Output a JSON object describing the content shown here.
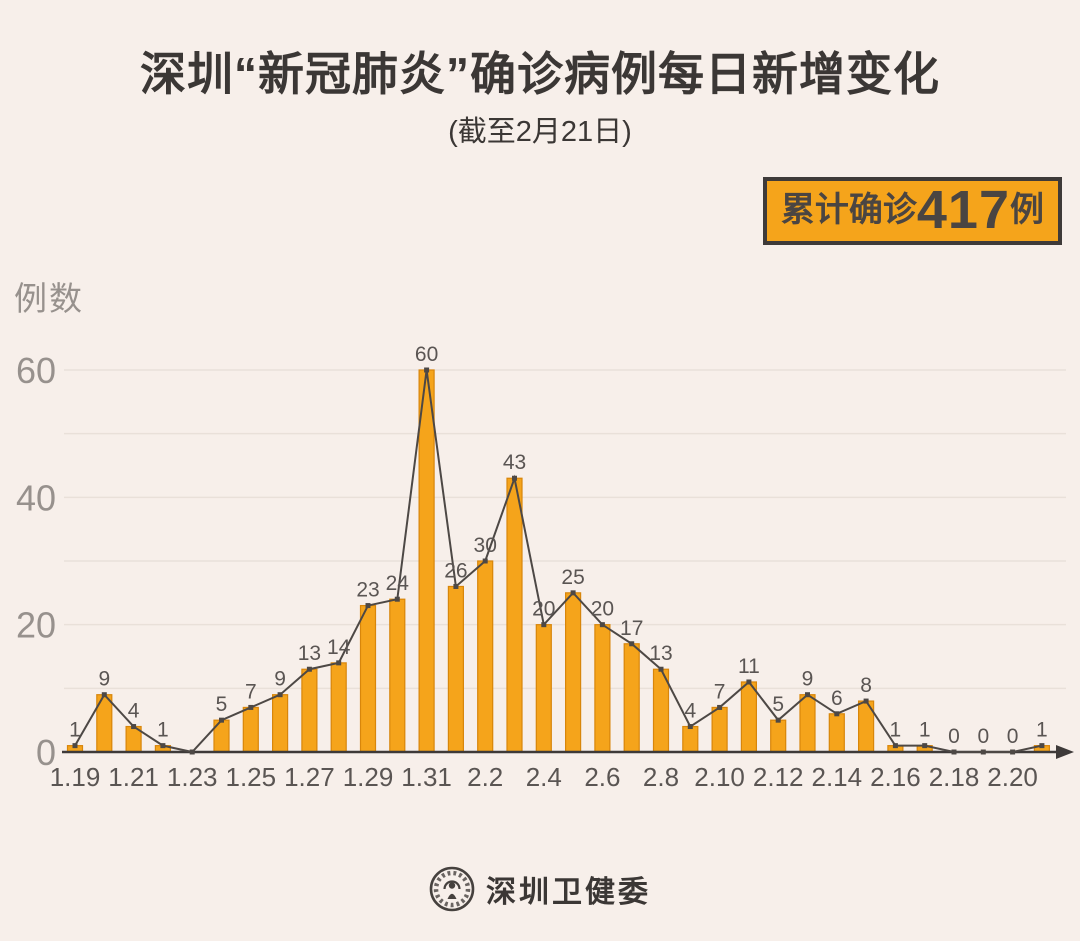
{
  "colors": {
    "background": "#F7EFEA",
    "bar_fill": "#F5A41B",
    "bar_stroke": "#D8860B",
    "line": "#4D4845",
    "marker": "#4D4845",
    "grid": "#E9E0D9",
    "axis": "#3E3A39",
    "text_dark": "#3B3735",
    "text_gray": "#5A5553",
    "tick_gray": "#97918D",
    "badge_bg": "#F5A41B",
    "badge_border": "#3E3A39",
    "badge_text": "#4A4542"
  },
  "header": {
    "title": "深圳“新冠肺炎”确诊病例每日新增变化",
    "subtitle": "(截至2月21日)"
  },
  "badge": {
    "prefix": "累计确诊",
    "value": "417",
    "suffix": "例",
    "full_text": "累计确诊417例"
  },
  "footer": {
    "org": "深圳卫健委",
    "logo": "shenzhen-health-commission-seal"
  },
  "chart_data": {
    "type": "bar",
    "line_overlay": true,
    "title": "深圳“新冠肺炎”确诊病例每日新增变化",
    "subtitle": "(截至2月21日)",
    "xlabel": "",
    "ylabel": "例数",
    "ylim": [
      0,
      65
    ],
    "y_ticks": [
      0,
      20,
      40,
      60
    ],
    "grid_values": [
      10,
      20,
      30,
      40,
      50,
      60
    ],
    "grid_on": true,
    "legend": "none",
    "categories": [
      "1.19",
      "1.20",
      "1.21",
      "1.22",
      "1.23",
      "1.24",
      "1.25",
      "1.26",
      "1.27",
      "1.28",
      "1.29",
      "1.30",
      "1.31",
      "2.1",
      "2.2",
      "2.3",
      "2.4",
      "2.5",
      "2.6",
      "2.7",
      "2.8",
      "2.9",
      "2.10",
      "2.11",
      "2.12",
      "2.13",
      "2.14",
      "2.15",
      "2.16",
      "2.17",
      "2.18",
      "2.19",
      "2.20",
      "2.21"
    ],
    "values": [
      1,
      9,
      4,
      1,
      0,
      5,
      7,
      9,
      13,
      14,
      23,
      24,
      60,
      26,
      30,
      43,
      20,
      25,
      20,
      17,
      13,
      4,
      7,
      11,
      5,
      9,
      6,
      8,
      1,
      1,
      0,
      0,
      0,
      1
    ],
    "point_labels": [
      "1",
      "9",
      "4",
      "1",
      "",
      "5",
      "7",
      "9",
      "13",
      "14",
      "23",
      "24",
      "60",
      "26",
      "30",
      "43",
      "20",
      "25",
      "20",
      "17",
      "13",
      "4",
      "7",
      "11",
      "5",
      "9",
      "6",
      "8",
      "1",
      "1",
      "0",
      "0",
      "0",
      "1"
    ],
    "x_tick_labels": [
      "1.19",
      "1.21",
      "1.23",
      "1.25",
      "1.27",
      "1.29",
      "1.31",
      "2.2",
      "2.4",
      "2.6",
      "2.8",
      "2.10",
      "2.12",
      "2.14",
      "2.16",
      "2.18",
      "2.20"
    ],
    "total": 417
  }
}
